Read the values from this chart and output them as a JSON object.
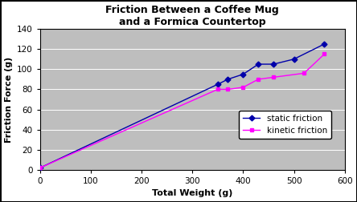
{
  "title_line1": "Friction Between a Coffee Mug",
  "title_line2": "and a Formica Countertop",
  "xlabel": "Total Weight (g)",
  "ylabel": "Friction Force (g)",
  "xlim": [
    0,
    600
  ],
  "ylim": [
    0,
    140
  ],
  "xticks": [
    0,
    100,
    200,
    300,
    400,
    500,
    600
  ],
  "yticks": [
    0,
    20,
    40,
    60,
    80,
    100,
    120,
    140
  ],
  "static_x": [
    0,
    350,
    370,
    400,
    430,
    460,
    500,
    560
  ],
  "static_y": [
    2,
    85,
    90,
    95,
    105,
    105,
    110,
    125
  ],
  "kinetic_x": [
    0,
    350,
    370,
    400,
    430,
    460,
    520,
    560
  ],
  "kinetic_y": [
    2,
    80,
    80,
    82,
    90,
    92,
    96,
    115
  ],
  "static_color": "#0000aa",
  "kinetic_color": "#ff00ff",
  "fig_bg_color": "#ffffff",
  "plot_bg_color": "#bebebe",
  "grid_color": "#ffffff",
  "static_label": "static friction",
  "kinetic_label": "kinetic friction",
  "title_fontsize": 9,
  "axis_label_fontsize": 8,
  "tick_fontsize": 7.5,
  "legend_fontsize": 7.5
}
